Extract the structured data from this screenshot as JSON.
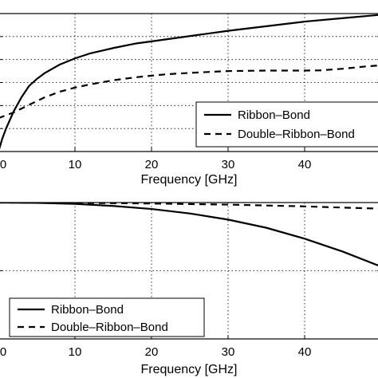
{
  "chart_data": [
    {
      "type": "line",
      "xlabel": "Frequency [GHz]",
      "ylabel": "",
      "title": "",
      "xlim": [
        0,
        50
      ],
      "ylim": [
        0,
        6
      ],
      "xticks": [
        0,
        10,
        20,
        30,
        40
      ],
      "xtick_labels": [
        "0",
        "10",
        "20",
        "30",
        "40"
      ],
      "yticks": [
        0,
        1,
        2,
        3,
        4,
        5,
        6
      ],
      "ytick_labels": [
        "",
        "",
        "",
        "",
        "",
        "",
        ""
      ],
      "grid": true,
      "legend_position": "right",
      "series": [
        {
          "name": "Ribbon–Bond",
          "style": "solid",
          "color": "#000000",
          "x": [
            0,
            0.5,
            1,
            2,
            3,
            4,
            5,
            6,
            8,
            10,
            12,
            15,
            18,
            20,
            25,
            30,
            35,
            40,
            45,
            50
          ],
          "y": [
            0.0,
            0.55,
            1.0,
            1.75,
            2.35,
            2.85,
            3.15,
            3.4,
            3.78,
            4.05,
            4.27,
            4.5,
            4.7,
            4.79,
            5.02,
            5.25,
            5.45,
            5.65,
            5.8,
            5.95
          ]
        },
        {
          "name": "Double–Ribbon–Bond",
          "style": "dashed",
          "color": "#000000",
          "x": [
            0,
            2,
            4,
            6,
            8,
            10,
            12,
            15,
            18,
            20,
            22,
            25,
            30,
            35,
            38,
            40,
            42,
            45,
            48,
            50
          ],
          "y": [
            1.45,
            1.7,
            2.03,
            2.35,
            2.6,
            2.78,
            2.92,
            3.1,
            3.23,
            3.3,
            3.36,
            3.42,
            3.5,
            3.52,
            3.52,
            3.52,
            3.53,
            3.6,
            3.7,
            3.75
          ]
        }
      ]
    },
    {
      "type": "line",
      "xlabel": "Frequency [GHz]",
      "ylabel": "",
      "title": "",
      "xlim": [
        0,
        50
      ],
      "ylim": [
        0,
        1
      ],
      "xticks": [
        0,
        10,
        20,
        30,
        40
      ],
      "xtick_labels": [
        "0",
        "10",
        "20",
        "30",
        "40"
      ],
      "yticks": [
        0,
        0.5,
        1
      ],
      "ytick_labels": [
        "",
        "",
        ""
      ],
      "grid": true,
      "legend_position": "bottom-left",
      "series": [
        {
          "name": "Ribbon–Bond",
          "style": "solid",
          "color": "#000000",
          "x": [
            0,
            5,
            10,
            15,
            20,
            25,
            30,
            35,
            40,
            45,
            50
          ],
          "y": [
            1.0,
            0.998,
            0.99,
            0.975,
            0.953,
            0.92,
            0.875,
            0.815,
            0.735,
            0.64,
            0.53
          ]
        },
        {
          "name": "Double–Ribbon–Bond",
          "style": "dashed",
          "color": "#000000",
          "x": [
            0,
            10,
            20,
            30,
            40,
            45,
            50
          ],
          "y": [
            1.0,
            0.998,
            0.993,
            0.985,
            0.972,
            0.963,
            0.955
          ]
        }
      ]
    }
  ]
}
